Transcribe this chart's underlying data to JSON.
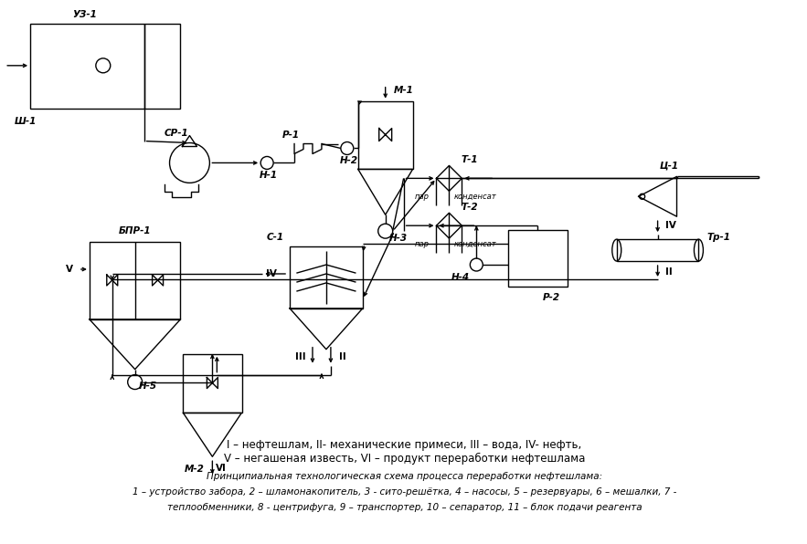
{
  "background_color": "#ffffff",
  "legend_line1": "I – нефтешлам, II- механические примеси, III – вода, IV- нефть,",
  "legend_line2": "V – негашеная известь, VI – продукт переработки нефтешлама",
  "caption_title": "Принципиальная технологическая схема процесса переработки нефтешлама:",
  "caption_line1": "1 – устройство забора, 2 – шламонакопитель, 3 - сито-решётка, 4 – насосы, 5 – резервуары, 6 – мешалки, 7 -",
  "caption_line2": "теплообменники, 8 - центрифуга, 9 – транспортер, 10 – сепаратор, 11 – блок подачи реагента"
}
